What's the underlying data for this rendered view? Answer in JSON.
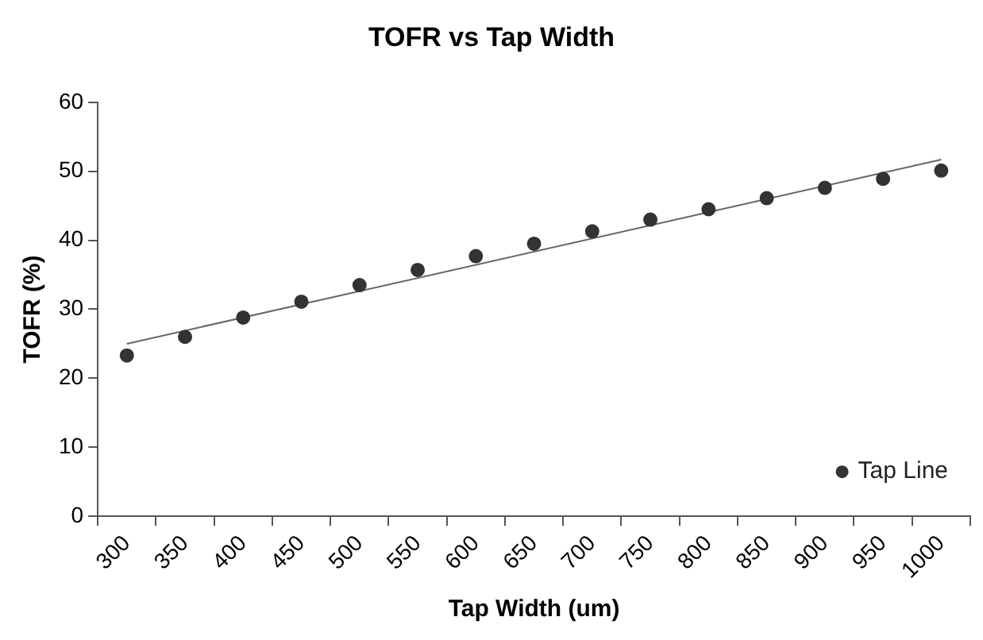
{
  "chart_data": {
    "type": "scatter",
    "title": "TOFR vs Tap Width",
    "xlabel": "Tap Width (um)",
    "ylabel": "TOFR (%)",
    "categories": [
      "300",
      "350",
      "400",
      "450",
      "500",
      "550",
      "600",
      "650",
      "700",
      "750",
      "800",
      "850",
      "900",
      "950",
      "1000"
    ],
    "ylim": [
      0,
      60
    ],
    "yticks": [
      0,
      10,
      20,
      30,
      40,
      50,
      60
    ],
    "grid": false,
    "legend": "bottom right",
    "series": [
      {
        "name": "Tap Line",
        "marker": "circle",
        "color": "#333333",
        "values": [
          23.3,
          26.0,
          28.8,
          31.1,
          33.5,
          35.7,
          37.7,
          39.5,
          41.3,
          43.0,
          44.5,
          46.1,
          47.6,
          48.9,
          50.1
        ]
      },
      {
        "type": "line",
        "marker": "none",
        "color": "#666666",
        "values": [
          25.0,
          null,
          null,
          null,
          null,
          null,
          null,
          null,
          null,
          null,
          null,
          null,
          null,
          null,
          51.7
        ]
      }
    ]
  }
}
